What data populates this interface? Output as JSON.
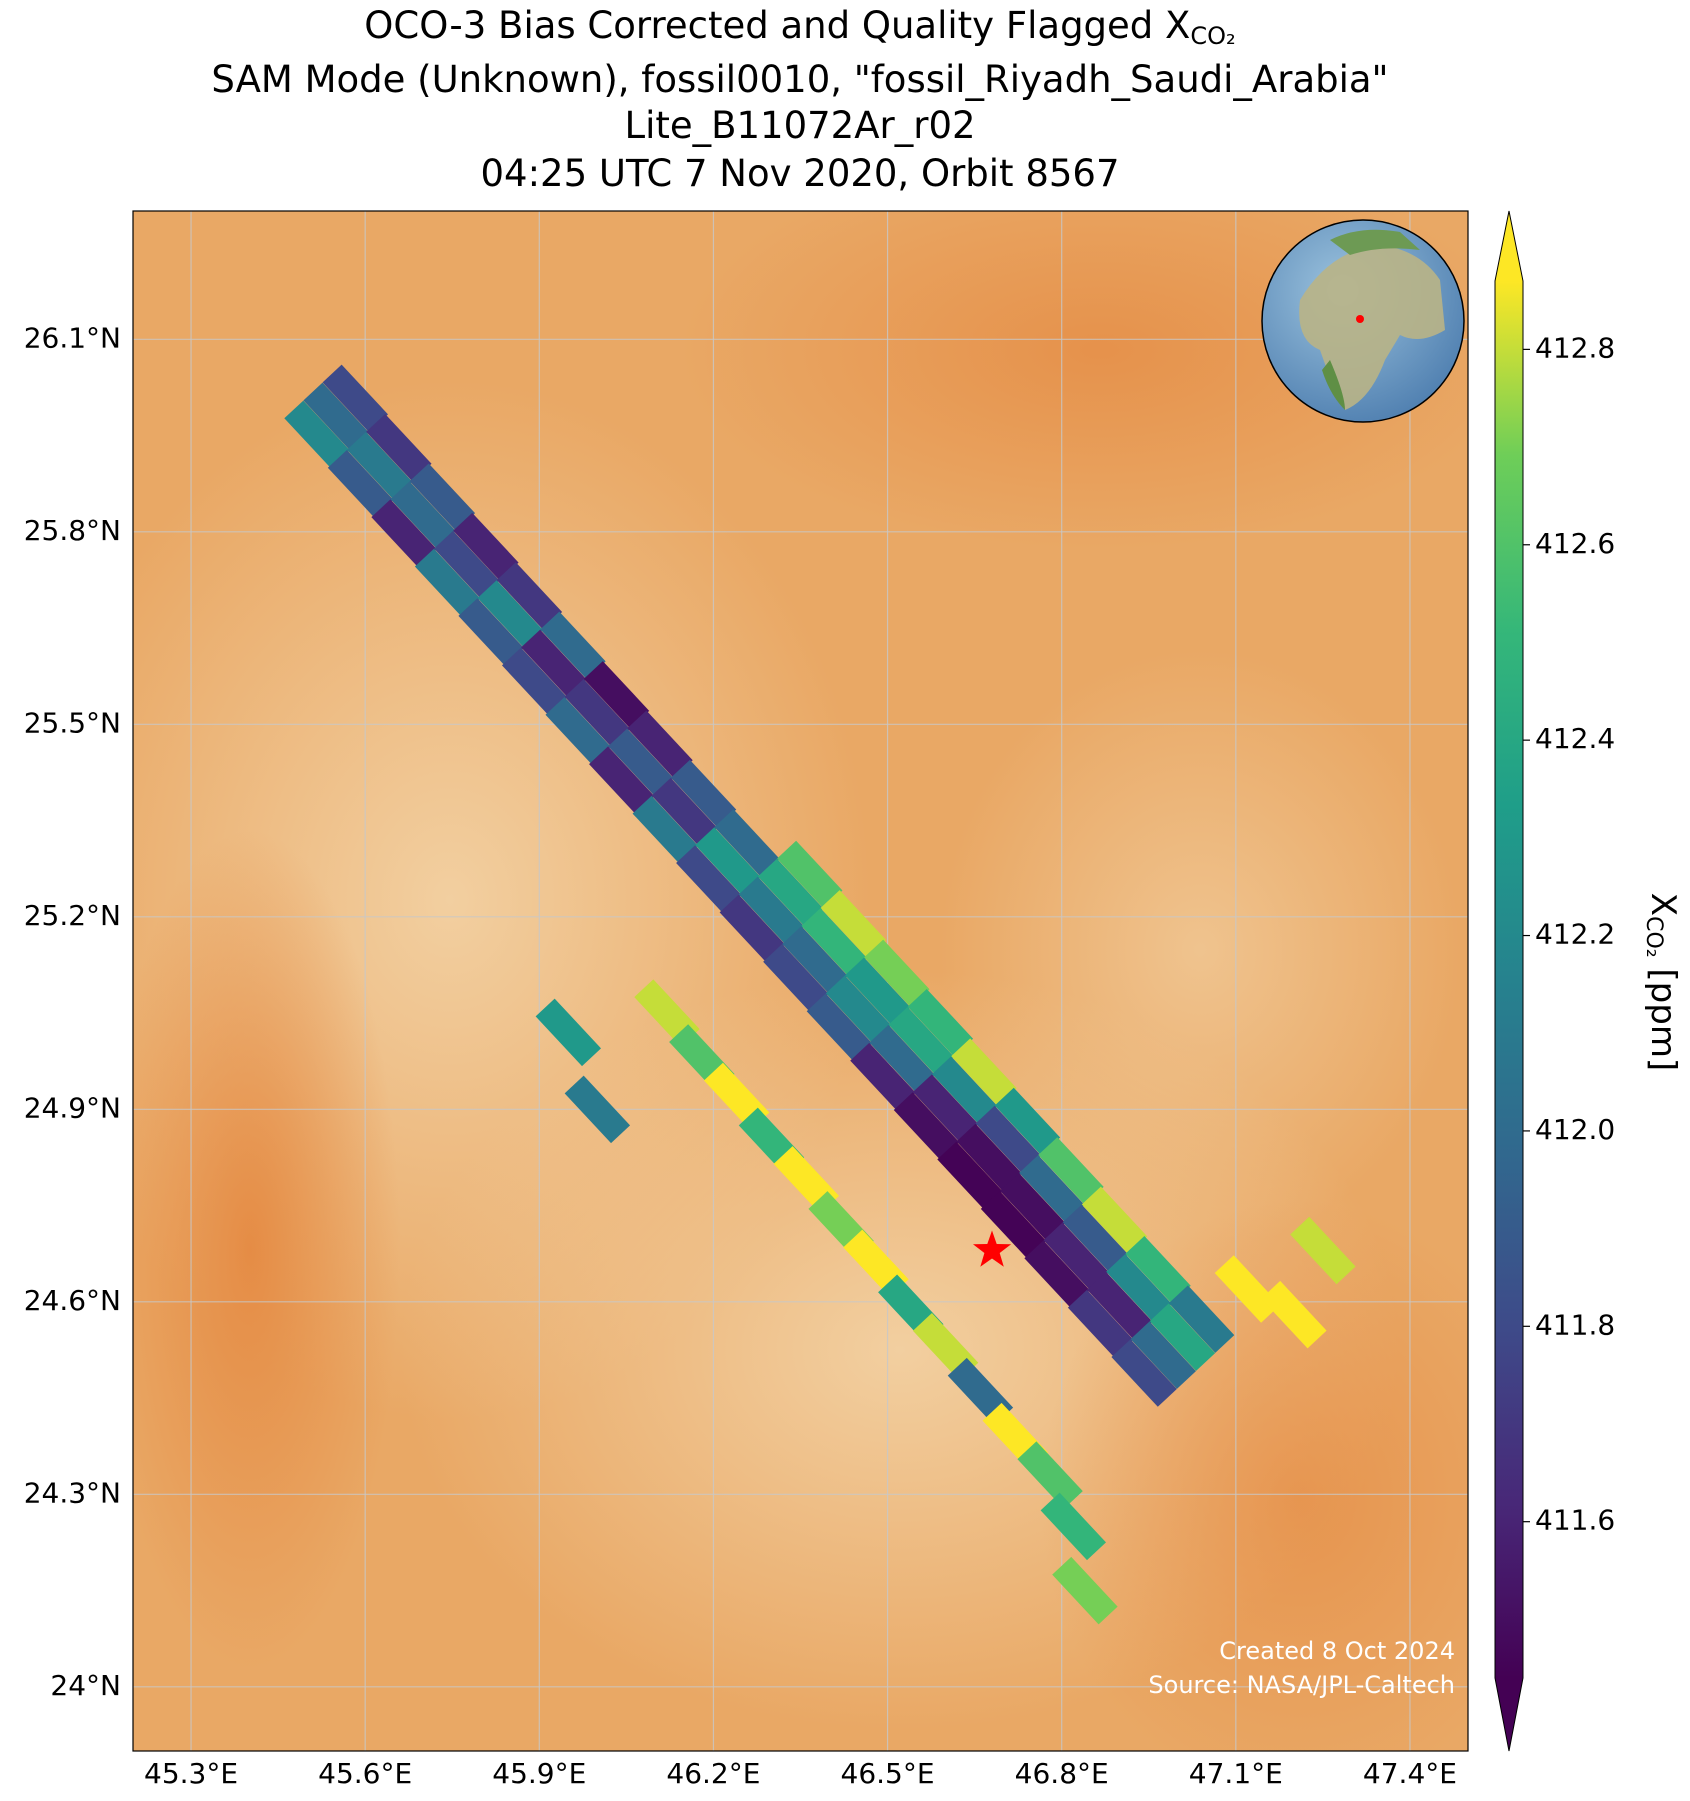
{
  "chart_data": {
    "type": "map",
    "title": [
      "OCO-3 Bias Corrected and Quality Flagged X",
      "SAM Mode (Unknown), fossil0010, \"fossil_Riyadh_Saudi_Arabia\"",
      "Lite_B11072Ar_r02",
      "04:25 UTC 7 Nov 2020, Orbit 8567"
    ],
    "title_subscript": "CO₂",
    "xlim": [
      45.2,
      47.5
    ],
    "ylim": [
      23.9,
      26.3
    ],
    "xticks": [
      {
        "value": 45.3,
        "label": "45.3°E"
      },
      {
        "value": 45.6,
        "label": "45.6°E"
      },
      {
        "value": 45.9,
        "label": "45.9°E"
      },
      {
        "value": 46.2,
        "label": "46.2°E"
      },
      {
        "value": 46.5,
        "label": "46.5°E"
      },
      {
        "value": 46.8,
        "label": "46.8°E"
      },
      {
        "value": 47.1,
        "label": "47.1°E"
      },
      {
        "value": 47.4,
        "label": "47.4°E"
      }
    ],
    "yticks": [
      {
        "value": 24.0,
        "label": "24°N"
      },
      {
        "value": 24.3,
        "label": "24.3°N"
      },
      {
        "value": 24.6,
        "label": "24.6°N"
      },
      {
        "value": 24.9,
        "label": "24.9°N"
      },
      {
        "value": 25.2,
        "label": "25.2°N"
      },
      {
        "value": 25.5,
        "label": "25.5°N"
      },
      {
        "value": 25.8,
        "label": "25.8°N"
      },
      {
        "value": 26.1,
        "label": "26.1°N"
      }
    ],
    "grid": true,
    "colormap": "viridis",
    "clim": [
      411.44,
      412.87
    ],
    "colorbar_extend": "both",
    "cticks": [
      411.6,
      411.8,
      {
        "value": 412.0,
        "label": "412.0"
      },
      412.2,
      412.4,
      412.6,
      412.8
    ],
    "colorbar_label": {
      "main": "X",
      "sub": "CO₂",
      "unit": " [ppm]"
    },
    "x": [
      45.517,
      45.55,
      45.583,
      45.592,
      45.625,
      45.658,
      45.667,
      45.7,
      45.733,
      45.742,
      45.775,
      45.808,
      45.817,
      45.85,
      45.883,
      45.892,
      45.925,
      45.958,
      45.967,
      46.0,
      46.033,
      46.042,
      46.075,
      46.108,
      46.117,
      46.15,
      46.183,
      46.192,
      46.225,
      46.258,
      46.267,
      46.3,
      46.333,
      46.366,
      46.342,
      46.375,
      46.408,
      46.441,
      46.417,
      46.45,
      46.483,
      46.516,
      46.492,
      46.525,
      46.558,
      46.591,
      46.567,
      46.6,
      46.633,
      46.666,
      46.642,
      46.675,
      46.708,
      46.741,
      46.717,
      46.75,
      46.783,
      46.816,
      46.792,
      46.825,
      46.858,
      46.891,
      46.867,
      46.9,
      46.933,
      46.966,
      46.942,
      46.975,
      47.008,
      47.041,
      46.12,
      46.18,
      46.24,
      46.3,
      46.36,
      46.42,
      46.48,
      46.54,
      46.6,
      46.66,
      46.72,
      46.78,
      46.82,
      46.84,
      45.95,
      46.0,
      47.12,
      47.2,
      47.25
    ],
    "y": [
      25.952,
      25.98,
      26.008,
      25.875,
      25.903,
      25.931,
      25.798,
      25.826,
      25.854,
      25.721,
      25.749,
      25.777,
      25.644,
      25.672,
      25.7,
      25.567,
      25.595,
      25.623,
      25.49,
      25.518,
      25.546,
      25.413,
      25.441,
      25.469,
      25.336,
      25.364,
      25.392,
      25.259,
      25.287,
      25.315,
      25.182,
      25.21,
      25.238,
      25.266,
      25.105,
      25.133,
      25.161,
      25.189,
      25.028,
      25.056,
      25.084,
      25.112,
      24.951,
      24.979,
      25.007,
      25.035,
      24.874,
      24.902,
      24.93,
      24.958,
      24.797,
      24.825,
      24.853,
      24.881,
      24.72,
      24.748,
      24.776,
      24.804,
      24.643,
      24.671,
      24.699,
      24.727,
      24.566,
      24.594,
      24.622,
      24.65,
      24.489,
      24.517,
      24.545,
      24.573,
      25.05,
      24.98,
      24.92,
      24.85,
      24.79,
      24.72,
      24.66,
      24.59,
      24.53,
      24.46,
      24.39,
      24.33,
      24.25,
      24.15,
      25.02,
      24.9,
      24.62,
      24.58,
      24.68
    ],
    "values": [
      412.2,
      412.0,
      411.8,
      411.9,
      412.1,
      411.7,
      411.6,
      412.0,
      411.9,
      412.1,
      411.8,
      411.6,
      411.9,
      412.2,
      411.7,
      411.8,
      411.6,
      412.0,
      412.0,
      411.7,
      411.5,
      411.6,
      411.9,
      411.6,
      412.1,
      411.7,
      411.9,
      411.8,
      412.3,
      412.0,
      411.7,
      412.1,
      412.4,
      412.6,
      411.8,
      412.0,
      412.5,
      412.8,
      411.9,
      412.2,
      412.3,
      412.7,
      411.6,
      412.0,
      412.4,
      412.5,
      411.5,
      411.6,
      412.2,
      412.8,
      411.45,
      411.5,
      411.8,
      412.3,
      411.45,
      411.5,
      412.0,
      412.6,
      411.5,
      411.6,
      411.9,
      412.8,
      411.7,
      411.6,
      412.2,
      412.5,
      411.8,
      412.0,
      412.4,
      412.1,
      412.8,
      412.6,
      412.9,
      412.5,
      412.9,
      412.7,
      412.9,
      412.4,
      412.8,
      412.0,
      412.9,
      412.6,
      412.5,
      412.7,
      412.3,
      412.1,
      412.9,
      412.9,
      412.8
    ],
    "target": {
      "lon": 46.68,
      "lat": 24.68,
      "color": "#ff0000"
    },
    "annotations": [
      "Created 8 Oct 2024",
      "Source: NASA/JPL-Caltech"
    ]
  }
}
